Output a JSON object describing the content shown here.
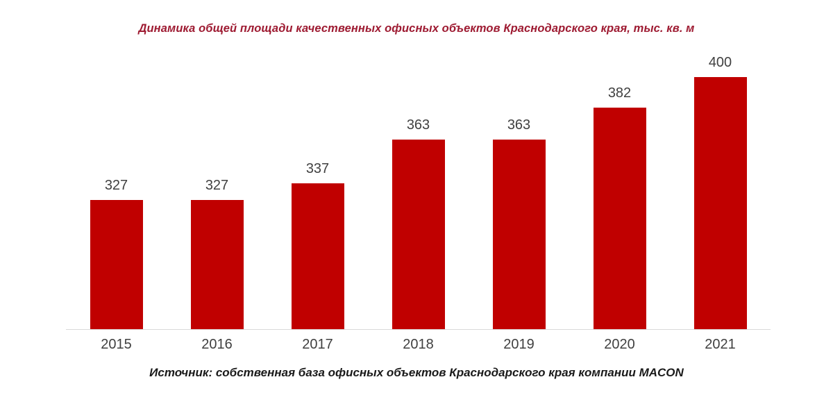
{
  "chart_data": {
    "type": "bar",
    "title": "Динамика общей площади качественных офисных объектов Краснодарского края, тыс. кв. м",
    "source": "Источник: собственная база офисных объектов Краснодарского края компании MACON",
    "categories": [
      "2015",
      "2016",
      "2017",
      "2018",
      "2019",
      "2020",
      "2021"
    ],
    "values": [
      327,
      327,
      337,
      363,
      363,
      382,
      400
    ],
    "xlabel": "",
    "ylabel": "",
    "ylim": [
      250,
      417
    ],
    "grid": false,
    "legend": false,
    "colors": {
      "bar": "#c00000",
      "title": "#9e1b32",
      "data_label": "#404040",
      "axis_label": "#404040",
      "baseline": "#d9d9d9"
    }
  }
}
